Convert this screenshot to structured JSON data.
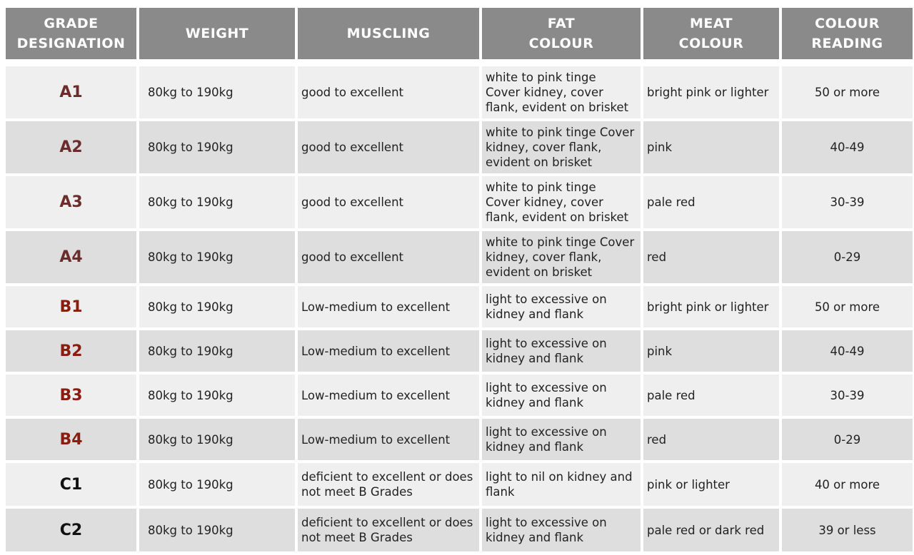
{
  "headers": [
    [
      "GRADE",
      "DESIGNATION"
    ],
    [
      "WEIGHT"
    ],
    [
      "MUSCLING"
    ],
    [
      "FAT",
      "COLOUR"
    ],
    [
      "MEAT",
      "COLOUR"
    ],
    [
      "COLOUR",
      "READING"
    ]
  ],
  "rows": [
    {
      "grade": "A1",
      "weight": "80kg to 190kg",
      "muscling": "good to excellent",
      "fat_lines": [
        "white to pink tinge",
        "Cover kidney, cover",
        "flank, evident on brisket"
      ],
      "meat": "bright pink or lighter",
      "reading": "50 or more"
    },
    {
      "grade": "A2",
      "weight": "80kg to 190kg",
      "muscling": "good to excellent",
      "fat_lines": [
        "white to pink tinge Cover",
        "kidney, cover flank,",
        "evident on brisket"
      ],
      "meat": "pink",
      "reading": "40-49"
    },
    {
      "grade": "A3",
      "weight": "80kg to 190kg",
      "muscling": "good to excellent",
      "fat_lines": [
        "white to pink tinge",
        "Cover kidney, cover",
        "flank, evident on brisket"
      ],
      "meat": "pale red",
      "reading": "30-39"
    },
    {
      "grade": "A4",
      "weight": "80kg to 190kg",
      "muscling": "good to excellent",
      "fat_lines": [
        "white to pink tinge Cover",
        "kidney, cover flank,",
        "evident on brisket"
      ],
      "meat": "red",
      "reading": "0-29"
    },
    {
      "grade": "B1",
      "weight": "80kg to 190kg",
      "muscling": "Low-medium to excellent",
      "fat_lines": [
        "light to excessive on",
        "kidney and flank"
      ],
      "meat": "bright pink or lighter",
      "reading": "50 or more"
    },
    {
      "grade": "B2",
      "weight": "80kg to 190kg",
      "muscling": "Low-medium to excellent",
      "fat_lines": [
        "light to excessive on",
        "kidney and flank"
      ],
      "meat": "pink",
      "reading": "40-49"
    },
    {
      "grade": "B3",
      "weight": "80kg to 190kg",
      "muscling": "Low-medium to excellent",
      "fat_lines": [
        "light to excessive on",
        "kidney and flank"
      ],
      "meat": "pale red",
      "reading": "30-39"
    },
    {
      "grade": "B4",
      "weight": "80kg to 190kg",
      "muscling": "Low-medium to excellent",
      "fat_lines": [
        "light to excessive on",
        "kidney and flank"
      ],
      "meat": "red",
      "reading": "0-29"
    },
    {
      "grade": "C1",
      "weight": "80kg to 190kg",
      "muscling_lines": [
        "deficient to excellent or does",
        "not meet B Grades"
      ],
      "fat_lines": [
        "light to nil on kidney and",
        "flank"
      ],
      "meat": "pink or lighter",
      "reading": "40 or more"
    },
    {
      "grade": "C2",
      "weight": "80kg to 190kg",
      "muscling_lines": [
        "deficient to excellent or does",
        "not meet B Grades"
      ],
      "fat_lines": [
        "light to excessive on",
        "kidney and flank"
      ],
      "meat": "pale red or dark red",
      "reading": "39 or less"
    }
  ],
  "colors": {
    "header_bg": "#8a8a8a",
    "row_light": "#efefef",
    "row_dark": "#dedede",
    "grade_a": "#6b2c2c",
    "grade_b": "#8a1c10",
    "grade_c": "#111111"
  }
}
